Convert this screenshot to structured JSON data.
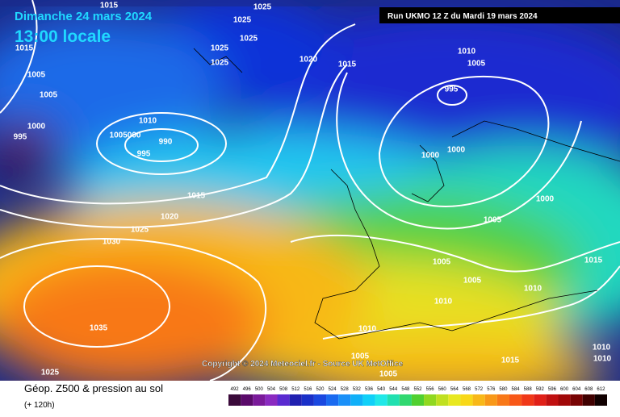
{
  "header": {
    "date": "Dimanche 24 mars 2024",
    "time": "13:00 locale",
    "run": "Run UKMO 12 Z du Mardi 19 mars 2024"
  },
  "copyright": "Copyright © 2024 Meteociel.fr - Source UK MetOffice",
  "footer": {
    "title": "Géop. Z500 & pression au sol",
    "lead": "(+ 120h)"
  },
  "legend": {
    "labels": [
      "492",
      "496",
      "500",
      "504",
      "508",
      "512",
      "516",
      "520",
      "524",
      "528",
      "532",
      "536",
      "540",
      "544",
      "548",
      "552",
      "556",
      "560",
      "564",
      "568",
      "572",
      "576",
      "580",
      "584",
      "588",
      "592",
      "596",
      "600",
      "604",
      "608",
      "612"
    ],
    "colors": [
      "#3a0a3a",
      "#5a0a6a",
      "#7a1a9a",
      "#8a2ac0",
      "#5a2ad0",
      "#2020b0",
      "#1a30c8",
      "#1a48e0",
      "#1a6af0",
      "#1a90f8",
      "#10b0f8",
      "#10d0f8",
      "#20e8e8",
      "#20e0b0",
      "#30d870",
      "#50d030",
      "#90d820",
      "#c0e020",
      "#e8e820",
      "#f8d818",
      "#f8b818",
      "#f89818",
      "#f87818",
      "#f85818",
      "#f03818",
      "#e02018",
      "#c01010",
      "#a00808",
      "#780404",
      "#400000",
      "#100000"
    ]
  },
  "isobars": [
    "1015",
    "1005",
    "1005",
    "1000",
    "995",
    "1015",
    "1025",
    "1025",
    "1025",
    "1025",
    "1025",
    "1020",
    "1015",
    "1010",
    "1005000",
    "990",
    "995",
    "1015",
    "1020",
    "1025",
    "1030",
    "1035",
    "1025",
    "1010",
    "1005",
    "995",
    "1000",
    "1000",
    "1000",
    "1005",
    "1005",
    "1005",
    "1010",
    "1015",
    "1010",
    "1010",
    "1005",
    "1005",
    "1015",
    "1010",
    "1010"
  ]
}
